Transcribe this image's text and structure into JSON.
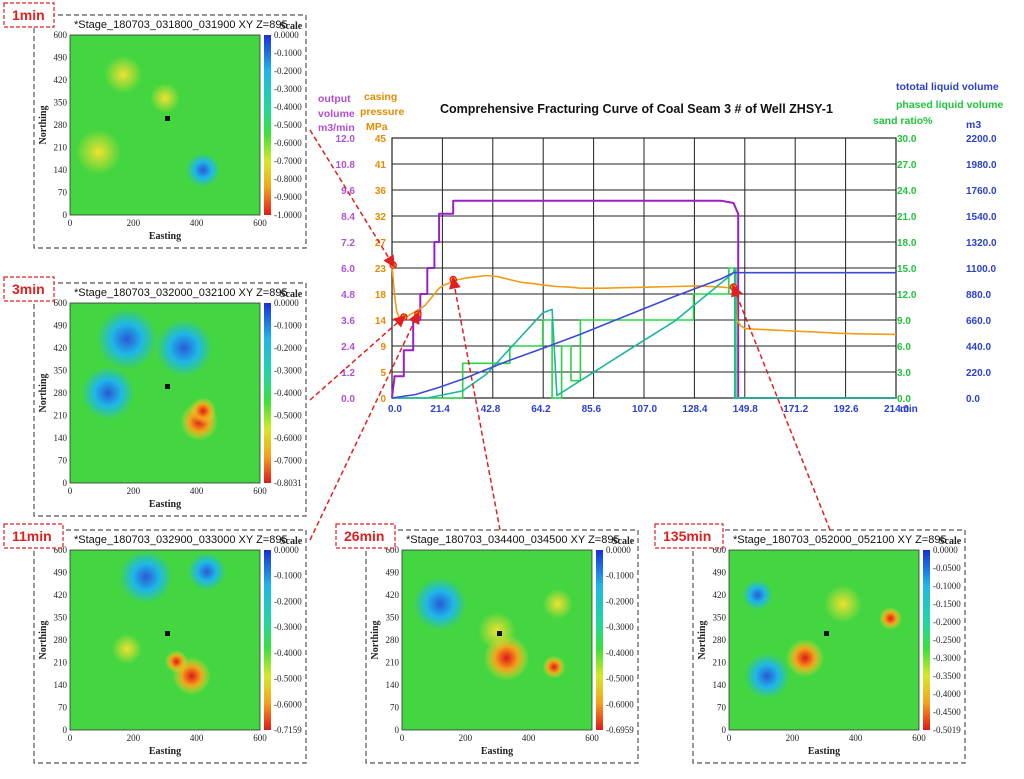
{
  "colors": {
    "flow": "#9a1fc4",
    "pressure": "#f39c12",
    "sand": "#27d642",
    "phased": "#1fb5a0",
    "total": "#3b4bd6",
    "pressureAxis": "#e58a00",
    "sandAxis": "#1fc43a",
    "leftAxisPurple": "#b14fd6",
    "totalAxis": "#2a40d0",
    "arrow": "#e02020"
  },
  "chart_data": [
    {
      "type": "line",
      "title": "Comprehensive Fracturing Curve of Coal Seam 3 # of Well ZHSY-1",
      "xlabel": "min",
      "x_ticks": [
        "0.0",
        "21.4",
        "42.8",
        "64.2",
        "85.6",
        "107.0",
        "128.4",
        "149.8",
        "171.2",
        "192.6",
        "214.0"
      ],
      "xlim": [
        0,
        214
      ],
      "axes": {
        "flow": {
          "label1": "output",
          "label2": "volume",
          "unit": "m3/min",
          "ticks": [
            "0.0",
            "1.2",
            "2.4",
            "3.6",
            "4.8",
            "6.0",
            "7.2",
            "8.4",
            "9.6",
            "10.8",
            "12.0"
          ],
          "range": [
            0,
            12
          ]
        },
        "pressure": {
          "label1": "casing",
          "label2": "pressure",
          "unit": "MPa",
          "ticks": [
            "0",
            "5",
            "9",
            "14",
            "18",
            "23",
            "27",
            "32",
            "36",
            "41",
            "45"
          ],
          "range": [
            0,
            45
          ]
        },
        "sand": {
          "label": "sand ratio%",
          "ticks": [
            "0.0",
            "3.0",
            "6.0",
            "9.0",
            "12.0",
            "15.0",
            "18.0",
            "21.0",
            "24.0",
            "27.0",
            "30.0"
          ],
          "range": [
            0,
            30
          ]
        },
        "volume": {
          "label_total": "tototal liquid volume",
          "label_phased": "phased liquid volume",
          "unit": "m3",
          "ticks": [
            "0.0",
            "220.0",
            "440.0",
            "660.0",
            "880.0",
            "1100.0",
            "1320.0",
            "1540.0",
            "1760.0",
            "1980.0",
            "2200.0"
          ],
          "range": [
            0,
            2200
          ]
        }
      },
      "series": [
        {
          "key": "flow",
          "axis": "flow",
          "x": [
            0,
            0.5,
            1,
            1,
            5,
            5,
            9,
            9,
            12,
            12,
            15,
            15,
            18,
            18,
            20,
            20,
            26,
            26,
            30,
            70,
            100,
            140,
            145,
            147,
            147,
            214
          ],
          "y": [
            0,
            0.5,
            0.9,
            1.0,
            1.0,
            2.2,
            2.2,
            3.6,
            3.6,
            4.8,
            4.8,
            6.0,
            6.0,
            7.2,
            7.2,
            8.5,
            8.5,
            9.1,
            9.1,
            9.1,
            9.1,
            9.1,
            9.0,
            8.5,
            0,
            0
          ]
        },
        {
          "key": "pressure",
          "axis": "pressure",
          "x": [
            0,
            1,
            2,
            3,
            4,
            6,
            8,
            10,
            12,
            14,
            16,
            18,
            20,
            22,
            25,
            28,
            32,
            36,
            40,
            45,
            50,
            55,
            60,
            65,
            70,
            75,
            80,
            90,
            100,
            110,
            120,
            130,
            140,
            145,
            146,
            146.5,
            148,
            150,
            160,
            170,
            180,
            190,
            200,
            214
          ],
          "y": [
            23,
            18,
            15,
            14,
            13.5,
            14,
            14.5,
            15,
            15.5,
            16,
            17,
            18,
            19,
            19.5,
            20,
            20.5,
            20.8,
            21,
            21.2,
            21,
            20.5,
            20,
            19.8,
            19.5,
            19.3,
            19.2,
            19,
            19,
            19.1,
            19.2,
            19.3,
            19.4,
            19.2,
            19,
            19,
            13.5,
            12.5,
            12,
            11.8,
            11.6,
            11.4,
            11.2,
            11.1,
            11
          ]
        },
        {
          "key": "sand",
          "axis": "sand",
          "x": [
            0,
            20,
            30,
            30,
            50,
            50,
            64,
            64,
            68,
            68,
            72,
            72,
            76,
            76,
            80,
            80,
            100,
            110,
            128,
            128,
            143,
            143,
            146,
            146,
            214
          ],
          "y": [
            0,
            0,
            0,
            4,
            4,
            6,
            6,
            9,
            9,
            0,
            0,
            6,
            6,
            2,
            2,
            9,
            9,
            9,
            9,
            12,
            12,
            15,
            15,
            0,
            0
          ]
        },
        {
          "key": "phased",
          "axis": "volume",
          "x": [
            0,
            15,
            30,
            40,
            64,
            68,
            70,
            70,
            100,
            120,
            145,
            145.5,
            145.5,
            214
          ],
          "y": [
            0,
            0,
            60,
            200,
            720,
            750,
            20,
            20,
            400,
            650,
            1060,
            1100,
            0,
            0
          ]
        },
        {
          "key": "total",
          "axis": "volume",
          "x": [
            0,
            10,
            20,
            30,
            40,
            50,
            64,
            80,
            100,
            120,
            140,
            145,
            147,
            214
          ],
          "y": [
            0,
            30,
            90,
            160,
            240,
            320,
            420,
            540,
            700,
            860,
            1010,
            1060,
            1060,
            1060
          ]
        }
      ],
      "markers": [
        {
          "series": "pressure",
          "x": 0.5,
          "y": 23
        },
        {
          "series": "pressure",
          "x": 5,
          "y": 14
        },
        {
          "series": "pressure",
          "x": 11,
          "y": 14.5
        },
        {
          "series": "pressure",
          "x": 26,
          "y": 20.5
        },
        {
          "series": "pressure",
          "x": 145,
          "y": 19.2
        }
      ]
    },
    {
      "type": "heatmap",
      "title": "*Stage_180703_031800_031900 XY Z=895",
      "tag": "1min",
      "xlabel": "Easting",
      "ylabel": "Northing",
      "x_ticks": [
        "0",
        "200",
        "400",
        "600"
      ],
      "y_ticks": [
        "0",
        "70",
        "140",
        "210",
        "280",
        "350",
        "420",
        "490",
        "600"
      ],
      "scale_label": "Scale",
      "scale_ticks": [
        "0.0000",
        "-0.1000",
        "-0.2000",
        "-0.3000",
        "-0.4000",
        "-0.5000",
        "-0.6000",
        "-0.7000",
        "-0.8000",
        "-0.9000",
        "-1.0000"
      ]
    },
    {
      "type": "heatmap",
      "title": "*Stage_180703_032000_032100 XY Z=895",
      "tag": "3min",
      "xlabel": "Easting",
      "ylabel": "Northing",
      "x_ticks": [
        "0",
        "200",
        "400",
        "600"
      ],
      "y_ticks": [
        "0",
        "70",
        "140",
        "210",
        "280",
        "350",
        "420",
        "490",
        "600"
      ],
      "scale_label": "Scale",
      "scale_ticks": [
        "0.0000",
        "-0.1000",
        "-0.2000",
        "-0.3000",
        "-0.4000",
        "-0.5000",
        "-0.6000",
        "-0.7000",
        "-0.8031"
      ]
    },
    {
      "type": "heatmap",
      "title": "*Stage_180703_032900_033000 XY Z=895",
      "tag": "11min",
      "xlabel": "Easting",
      "ylabel": "Northing",
      "x_ticks": [
        "0",
        "200",
        "400",
        "600"
      ],
      "y_ticks": [
        "0",
        "70",
        "140",
        "210",
        "280",
        "350",
        "420",
        "490",
        "600"
      ],
      "scale_label": "Scale",
      "scale_ticks": [
        "0.0000",
        "-0.1000",
        "-0.2000",
        "-0.3000",
        "-0.4000",
        "-0.5000",
        "-0.6000",
        "-0.7159"
      ]
    },
    {
      "type": "heatmap",
      "title": "*Stage_180703_034400_034500 XY Z=895",
      "tag": "26min",
      "xlabel": "Easting",
      "ylabel": "Northing",
      "x_ticks": [
        "0",
        "200",
        "400",
        "600"
      ],
      "y_ticks": [
        "0",
        "70",
        "140",
        "210",
        "280",
        "350",
        "420",
        "490",
        "600"
      ],
      "scale_label": "Scale",
      "scale_ticks": [
        "0.0000",
        "-0.1000",
        "-0.2000",
        "-0.3000",
        "-0.4000",
        "-0.5000",
        "-0.6000",
        "-0.6959"
      ]
    },
    {
      "type": "heatmap",
      "title": "*Stage_180703_052000_052100 XY Z=895",
      "tag": "135min",
      "xlabel": "Easting",
      "ylabel": "Northing",
      "x_ticks": [
        "0",
        "200",
        "400",
        "600"
      ],
      "y_ticks": [
        "0",
        "70",
        "140",
        "210",
        "280",
        "350",
        "420",
        "490",
        "600"
      ],
      "scale_label": "Scale",
      "scale_ticks": [
        "0.0000",
        "-0.0500",
        "-0.1000",
        "-0.1500",
        "-0.2000",
        "-0.2500",
        "-0.3000",
        "-0.3500",
        "-0.4000",
        "-0.4500",
        "-0.5019"
      ]
    }
  ]
}
